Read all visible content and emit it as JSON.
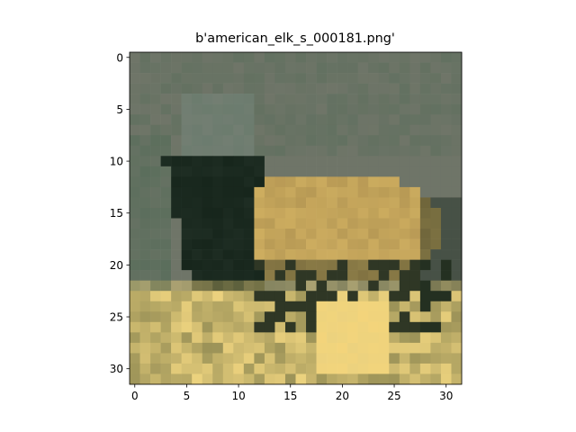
{
  "chart_data": {
    "type": "heatmap",
    "title": "b'american_elk_s_000181.png'",
    "xlabel": "",
    "ylabel": "",
    "grid": false,
    "xlim": [
      -0.5,
      31.5
    ],
    "ylim": [
      31.5,
      -0.5
    ],
    "x_ticks": [
      0,
      5,
      10,
      15,
      20,
      25,
      30
    ],
    "y_ticks": [
      0,
      5,
      10,
      15,
      20,
      25,
      30
    ],
    "image_size": [
      32,
      32
    ],
    "content": "low-resolution photo of an elk: dark forest-green foliage left, tan elk body center-right, bright yellow sunlit grass bottom",
    "colors": {
      "background_sky": "#6f7568",
      "foliage_dark": "#17261c",
      "foliage_mid": "#5b6e5c",
      "elk_body": "#b89a55",
      "elk_highlight": "#d6b564",
      "grass_bright": "#ecd27e",
      "grass_dim": "#9c9358"
    }
  }
}
